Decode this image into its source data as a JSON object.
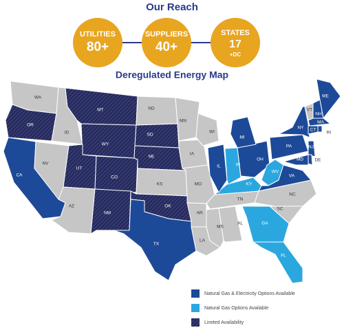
{
  "header": {
    "title": "Our Reach"
  },
  "stats": [
    {
      "label": "UTILITIES",
      "value": "80+"
    },
    {
      "label": "SUPPLIERS",
      "value": "40+"
    },
    {
      "label": "STATES",
      "value": "17",
      "note": "+DC"
    }
  ],
  "map": {
    "title": "Deregulated Energy Map",
    "legend": [
      {
        "label": "Natural Gas & Electricity Options Available",
        "color": "#1d4a98"
      },
      {
        "label": "Natural Gas Options Available",
        "color": "#2ba7e0"
      },
      {
        "label": "Limited Availability",
        "color": "#262a5c",
        "pattern": "hatch"
      }
    ],
    "no_option_color": "#c6c6c6",
    "states": [
      {
        "label": "WA",
        "legend": null
      },
      {
        "label": "OR",
        "legend": 2
      },
      {
        "label": "CA",
        "legend": 0
      },
      {
        "label": "NV",
        "legend": null
      },
      {
        "label": "ID",
        "legend": null
      },
      {
        "label": "MT",
        "legend": 2
      },
      {
        "label": "WY",
        "legend": 2
      },
      {
        "label": "UT",
        "legend": 2
      },
      {
        "label": "AZ",
        "legend": null
      },
      {
        "label": "CO",
        "legend": 2
      },
      {
        "label": "NM",
        "legend": 2
      },
      {
        "label": "ND",
        "legend": null
      },
      {
        "label": "SD",
        "legend": 2
      },
      {
        "label": "NE",
        "legend": 2
      },
      {
        "label": "KS",
        "legend": null
      },
      {
        "label": "OK",
        "legend": 2
      },
      {
        "label": "TX",
        "legend": 0
      },
      {
        "label": "MN",
        "legend": null
      },
      {
        "label": "IA",
        "legend": null
      },
      {
        "label": "WI",
        "legend": null
      },
      {
        "label": "MO",
        "legend": null
      },
      {
        "label": "AR",
        "legend": null
      },
      {
        "label": "LA",
        "legend": null
      },
      {
        "label": "MS",
        "legend": null
      },
      {
        "label": "AL",
        "legend": null
      },
      {
        "label": "TN",
        "legend": null
      },
      {
        "label": "KY",
        "legend": 1
      },
      {
        "label": "IL",
        "legend": 0
      },
      {
        "label": "IN",
        "legend": 1
      },
      {
        "label": "OH",
        "legend": 0
      },
      {
        "label": "MI",
        "legend": 0
      },
      {
        "label": "WV",
        "legend": 1
      },
      {
        "label": "VA",
        "legend": 0
      },
      {
        "label": "NC",
        "legend": null
      },
      {
        "label": "SC",
        "legend": null
      },
      {
        "label": "GA",
        "legend": 1
      },
      {
        "label": "FL",
        "legend": 1
      },
      {
        "label": "PA",
        "legend": 0
      },
      {
        "label": "NY",
        "legend": 0
      },
      {
        "label": "VT",
        "legend": null
      },
      {
        "label": "NH",
        "legend": 0
      },
      {
        "label": "ME",
        "legend": 0
      },
      {
        "label": "MA",
        "legend": 0
      },
      {
        "label": "CT",
        "legend": 0
      },
      {
        "label": "RI",
        "legend": 0
      },
      {
        "label": "NJ",
        "legend": 0
      },
      {
        "label": "DE",
        "legend": 0
      },
      {
        "label": "MD",
        "legend": 0
      }
    ]
  }
}
